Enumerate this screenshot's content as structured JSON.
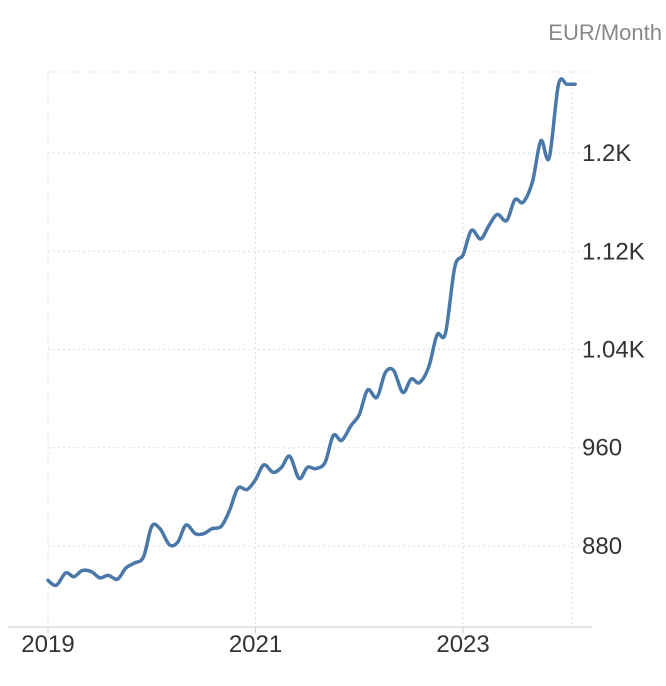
{
  "chart_data": {
    "type": "line",
    "unit_label": "EUR/Month",
    "x_ticks": [
      "2019",
      "2021",
      "2023"
    ],
    "y_ticks": [
      "880",
      "960",
      "1.04K",
      "1.12K",
      "1.2K"
    ],
    "y_tick_values": [
      880,
      960,
      1040,
      1120,
      1200
    ],
    "xlim": [
      2019.0,
      2024.05
    ],
    "ylim": [
      814,
      1266
    ],
    "grid": true,
    "y_axis_position": "right",
    "series": [
      {
        "color": "#4a78a8",
        "x": [
          2019.0,
          2019.08,
          2019.17,
          2019.25,
          2019.33,
          2019.42,
          2019.5,
          2019.58,
          2019.67,
          2019.75,
          2019.83,
          2019.92,
          2020.0,
          2020.08,
          2020.17,
          2020.25,
          2020.33,
          2020.42,
          2020.5,
          2020.58,
          2020.67,
          2020.75,
          2020.83,
          2020.92,
          2021.0,
          2021.08,
          2021.17,
          2021.25,
          2021.33,
          2021.42,
          2021.5,
          2021.58,
          2021.67,
          2021.75,
          2021.83,
          2021.92,
          2022.0,
          2022.08,
          2022.17,
          2022.25,
          2022.33,
          2022.42,
          2022.5,
          2022.58,
          2022.67,
          2022.75,
          2022.83,
          2022.92,
          2023.0,
          2023.08,
          2023.17,
          2023.25,
          2023.33,
          2023.42,
          2023.5,
          2023.58,
          2023.67,
          2023.75,
          2023.83,
          2023.92,
          2024.0,
          2024.08
        ],
        "values": [
          852,
          848,
          858,
          855,
          860,
          859,
          854,
          856,
          853,
          862,
          866,
          871,
          896,
          894,
          881,
          883,
          897,
          890,
          890,
          894,
          896,
          909,
          927,
          926,
          934,
          946,
          940,
          944,
          953,
          935,
          944,
          943,
          948,
          970,
          966,
          978,
          987,
          1007,
          1001,
          1021,
          1023,
          1005,
          1016,
          1013,
          1026,
          1052,
          1053,
          1107,
          1117,
          1137,
          1130,
          1141,
          1150,
          1145,
          1162,
          1160,
          1177,
          1210,
          1196,
          1256,
          1256,
          1256
        ]
      }
    ]
  }
}
